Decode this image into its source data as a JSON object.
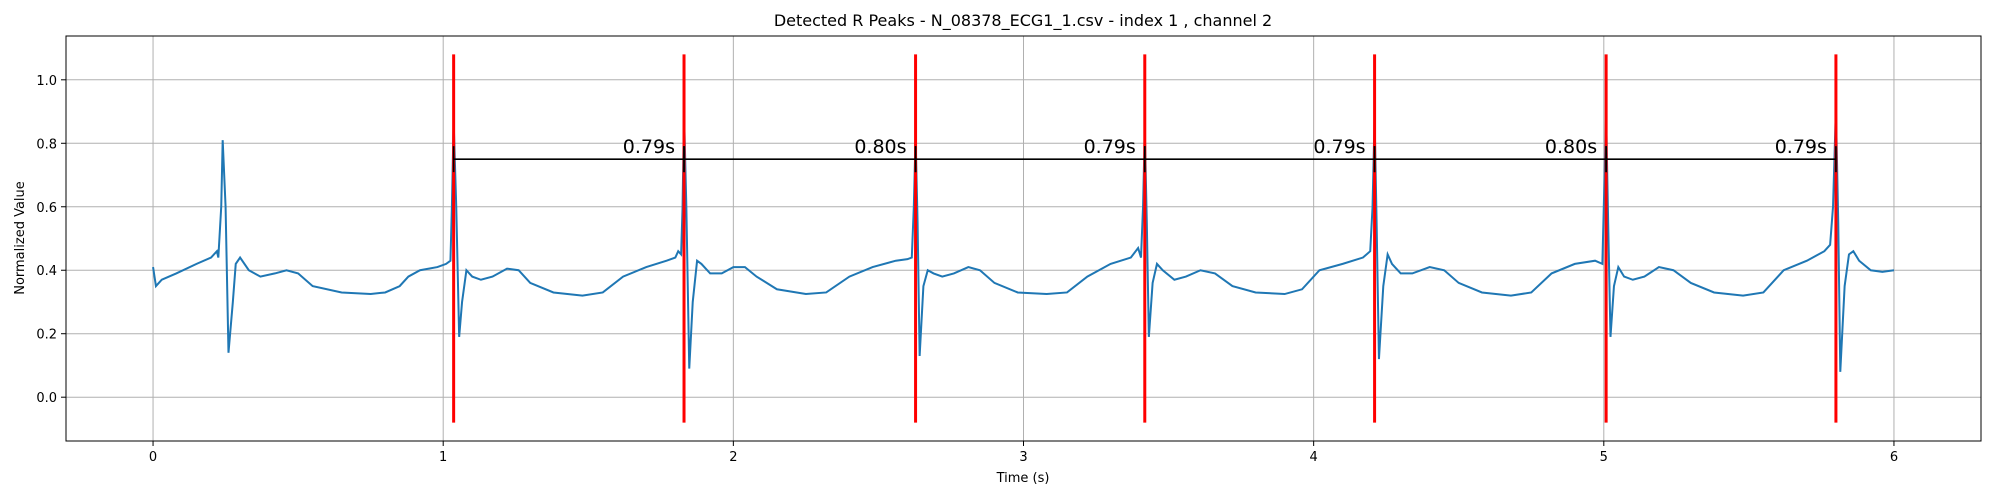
{
  "chart_data": {
    "type": "line",
    "title": "Detected R Peaks - N_08378_ECG1_1.csv - index 1 , channel 2",
    "x_label": "Time (s)",
    "y_label": "Normalized Value",
    "xlim": [
      -0.3,
      6.3
    ],
    "ylim": [
      -0.138,
      1.138
    ],
    "xticks": [
      0,
      1,
      2,
      3,
      4,
      5,
      6
    ],
    "yticks": [
      {
        "value": 0,
        "label": "0.0"
      },
      0.2,
      0.4,
      0.6,
      0.8,
      {
        "value": 1,
        "label": "1.0"
      }
    ],
    "grid": true,
    "x": [
      0,
      0.01,
      0.03,
      0.08,
      0.15,
      0.2,
      0.22,
      0.225,
      0.235,
      0.24,
      0.25,
      0.26,
      0.275,
      0.285,
      0.3,
      0.33,
      0.37,
      0.42,
      0.46,
      0.5,
      0.55,
      0.65,
      0.75,
      0.8,
      0.85,
      0.88,
      0.92,
      0.98,
      1.01,
      1.025,
      1.03,
      1.036,
      1.045,
      1.055,
      1.065,
      1.08,
      1.1,
      1.13,
      1.17,
      1.22,
      1.26,
      1.3,
      1.38,
      1.48,
      1.55,
      1.62,
      1.7,
      1.77,
      1.8,
      1.81,
      1.82,
      1.825,
      1.83,
      1.838,
      1.848,
      1.86,
      1.875,
      1.89,
      1.92,
      1.96,
      2.0,
      2.04,
      2.08,
      2.15,
      2.25,
      2.32,
      2.4,
      2.48,
      2.56,
      2.6,
      2.615,
      2.622,
      2.628,
      2.635,
      2.642,
      2.655,
      2.67,
      2.69,
      2.72,
      2.76,
      2.81,
      2.85,
      2.9,
      2.98,
      3.08,
      3.15,
      3.22,
      3.3,
      3.37,
      3.395,
      3.405,
      3.412,
      3.418,
      3.425,
      3.432,
      3.445,
      3.46,
      3.48,
      3.52,
      3.56,
      3.61,
      3.66,
      3.72,
      3.8,
      3.9,
      3.96,
      4.02,
      4.1,
      4.17,
      4.195,
      4.203,
      4.21,
      4.217,
      4.225,
      4.24,
      4.255,
      4.27,
      4.3,
      4.34,
      4.4,
      4.45,
      4.5,
      4.58,
      4.68,
      4.75,
      4.82,
      4.9,
      4.97,
      4.995,
      5.0,
      5.008,
      5.015,
      5.023,
      5.035,
      5.05,
      5.07,
      5.1,
      5.14,
      5.19,
      5.24,
      5.3,
      5.38,
      5.48,
      5.55,
      5.62,
      5.7,
      5.76,
      5.78,
      5.79,
      5.8,
      5.808,
      5.815,
      5.83,
      5.845,
      5.86,
      5.88,
      5.92,
      5.96,
      6.0
    ],
    "series": [
      {
        "color": "#1f77b4",
        "values": [
          0.41,
          0.35,
          0.37,
          0.39,
          0.42,
          0.44,
          0.46,
          0.44,
          0.6,
          0.81,
          0.6,
          0.14,
          0.3,
          0.42,
          0.44,
          0.4,
          0.38,
          0.39,
          0.4,
          0.39,
          0.35,
          0.33,
          0.325,
          0.33,
          0.35,
          0.38,
          0.4,
          0.41,
          0.42,
          0.43,
          0.6,
          0.87,
          0.6,
          0.19,
          0.3,
          0.4,
          0.38,
          0.37,
          0.38,
          0.405,
          0.4,
          0.36,
          0.33,
          0.32,
          0.33,
          0.38,
          0.41,
          0.43,
          0.44,
          0.46,
          0.45,
          0.6,
          0.9,
          0.6,
          0.09,
          0.3,
          0.43,
          0.42,
          0.39,
          0.39,
          0.41,
          0.41,
          0.38,
          0.34,
          0.325,
          0.33,
          0.38,
          0.41,
          0.43,
          0.435,
          0.44,
          0.6,
          0.82,
          0.55,
          0.13,
          0.35,
          0.4,
          0.39,
          0.38,
          0.39,
          0.41,
          0.4,
          0.36,
          0.33,
          0.325,
          0.33,
          0.38,
          0.42,
          0.44,
          0.47,
          0.44,
          0.6,
          0.84,
          0.55,
          0.19,
          0.36,
          0.42,
          0.4,
          0.37,
          0.38,
          0.4,
          0.39,
          0.35,
          0.33,
          0.325,
          0.34,
          0.4,
          0.42,
          0.44,
          0.46,
          0.6,
          0.88,
          0.55,
          0.12,
          0.35,
          0.45,
          0.42,
          0.39,
          0.39,
          0.41,
          0.4,
          0.36,
          0.33,
          0.32,
          0.33,
          0.39,
          0.42,
          0.43,
          0.42,
          0.6,
          0.89,
          0.55,
          0.19,
          0.35,
          0.41,
          0.38,
          0.37,
          0.38,
          0.41,
          0.4,
          0.36,
          0.33,
          0.32,
          0.33,
          0.4,
          0.43,
          0.46,
          0.48,
          0.6,
          0.91,
          0.55,
          0.08,
          0.35,
          0.45,
          0.46,
          0.43,
          0.4,
          0.395,
          0.4
        ]
      }
    ],
    "r_peaks": {
      "color": "#ff0000",
      "x": [
        1.036,
        1.83,
        2.628,
        3.418,
        4.21,
        5.008,
        5.8
      ],
      "ymin": -0.08,
      "ymax": 1.08
    },
    "intervals": {
      "color": "#000000",
      "y": 0.75,
      "values": [
        0.79,
        0.8,
        0.79,
        0.79,
        0.8,
        0.79
      ],
      "value_labels": [
        "0.79s",
        "0.80s",
        "0.79s",
        "0.79s",
        "0.80s",
        "0.79s"
      ]
    }
  }
}
